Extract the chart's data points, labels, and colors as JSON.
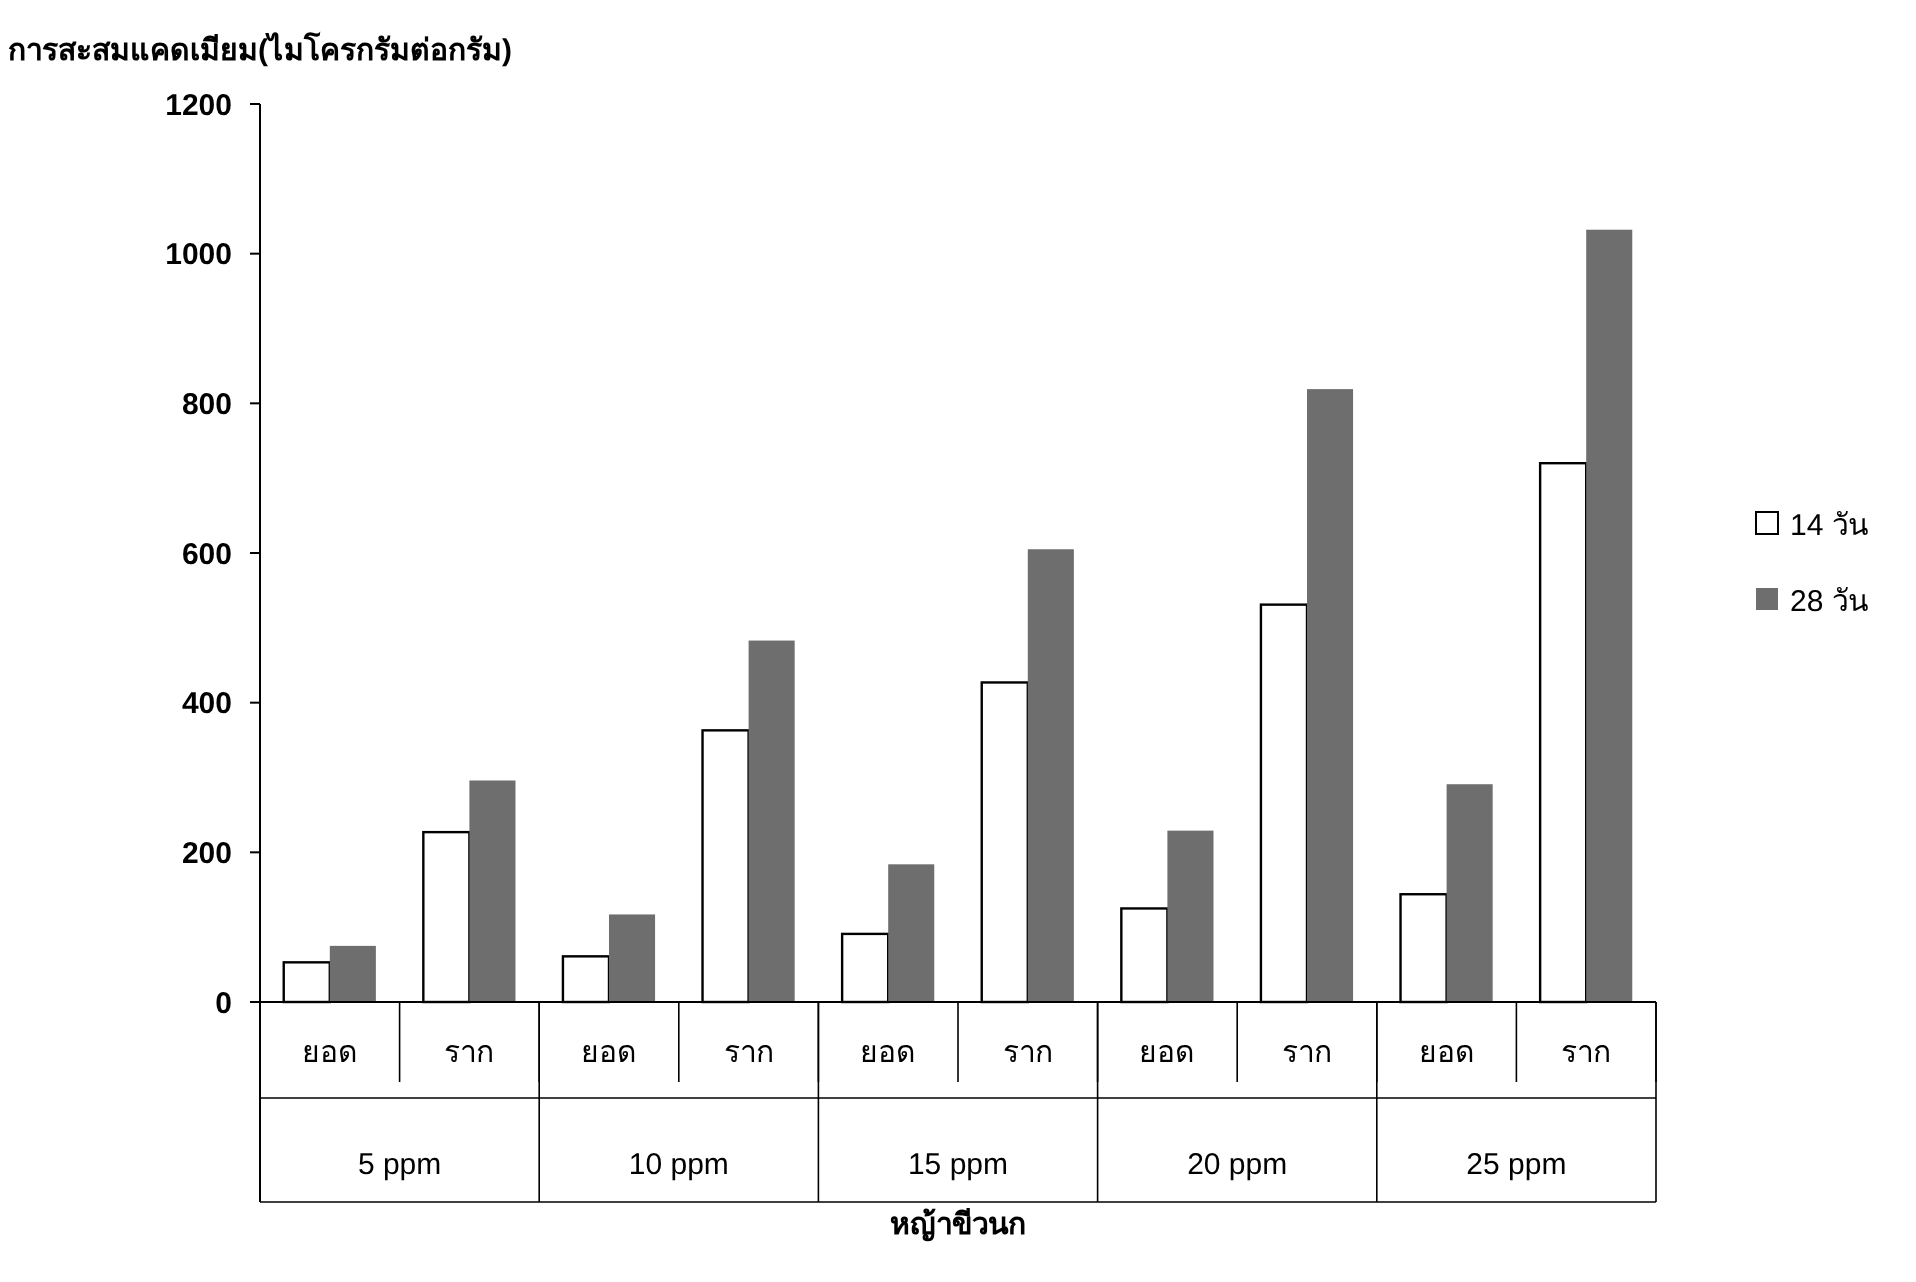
{
  "chart_data": {
    "type": "bar",
    "ylabel": "การสะสมแคดเมียม(ไมโครกรัมต่อกรัม)",
    "xlabel": "หญ้าขีวนก",
    "categories": [
      "ยอด",
      "ราก",
      "ยอด",
      "ราก",
      "ยอด",
      "ราก",
      "ยอด",
      "ราก",
      "ยอด",
      "ราก"
    ],
    "annotations": [
      "5 ppm",
      "10 ppm",
      "15 ppm",
      "20 ppm",
      "25 ppm"
    ],
    "series": [
      {
        "name": "14 วัน",
        "color": "#ffffff",
        "values": [
          53,
          227,
          61,
          363,
          91,
          427,
          125,
          531,
          144,
          720
        ]
      },
      {
        "name": "28 วัน",
        "color": "#6e6e6e",
        "values": [
          75,
          296,
          117,
          483,
          184,
          605,
          229,
          819,
          291,
          1032
        ]
      }
    ],
    "ylim": [
      0,
      1200
    ],
    "yticks": [
      0,
      200,
      400,
      600,
      800,
      1000,
      1200
    ],
    "legend": "right",
    "grid": false
  }
}
